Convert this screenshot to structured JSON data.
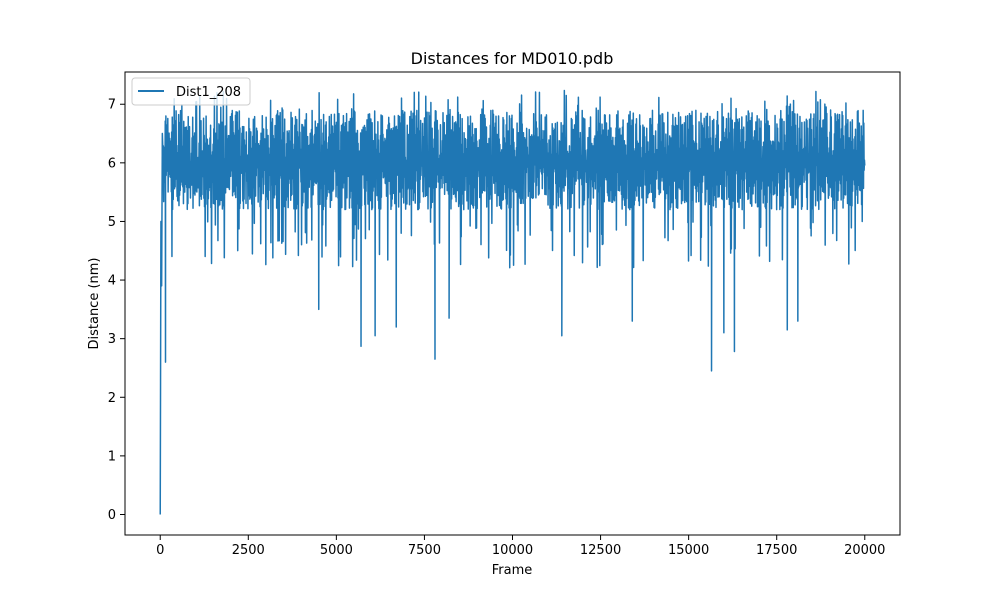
{
  "chart_data": {
    "type": "line",
    "title": "Distances for MD010.pdb",
    "xlabel": "Frame",
    "ylabel": "Distance (nm)",
    "xlim": [
      -1000,
      21000
    ],
    "ylim": [
      -0.35,
      7.55
    ],
    "xticks": [
      0,
      2500,
      5000,
      7500,
      10000,
      12500,
      15000,
      17500,
      20000
    ],
    "yticks": [
      0,
      1,
      2,
      3,
      4,
      5,
      6,
      7
    ],
    "grid": false,
    "legend_position": "top-left",
    "series": [
      {
        "name": "Dist1_208",
        "color": "#1f77b4",
        "n_frames": 20000,
        "start": {
          "frame": 0,
          "value": 0.0
        },
        "typical_band": {
          "low": 5.0,
          "high": 6.9
        },
        "max_value": 7.25,
        "min_value_after_start": 2.45,
        "notable_dips": [
          {
            "frame": 150,
            "value": 2.6
          },
          {
            "frame": 4500,
            "value": 3.5
          },
          {
            "frame": 5700,
            "value": 2.87
          },
          {
            "frame": 6100,
            "value": 3.05
          },
          {
            "frame": 6700,
            "value": 3.2
          },
          {
            "frame": 7800,
            "value": 2.65
          },
          {
            "frame": 8200,
            "value": 3.35
          },
          {
            "frame": 11400,
            "value": 3.05
          },
          {
            "frame": 13400,
            "value": 3.3
          },
          {
            "frame": 15650,
            "value": 2.45
          },
          {
            "frame": 16000,
            "value": 3.1
          },
          {
            "frame": 16300,
            "value": 2.78
          },
          {
            "frame": 17800,
            "value": 3.15
          },
          {
            "frame": 18100,
            "value": 3.3
          }
        ]
      }
    ]
  }
}
